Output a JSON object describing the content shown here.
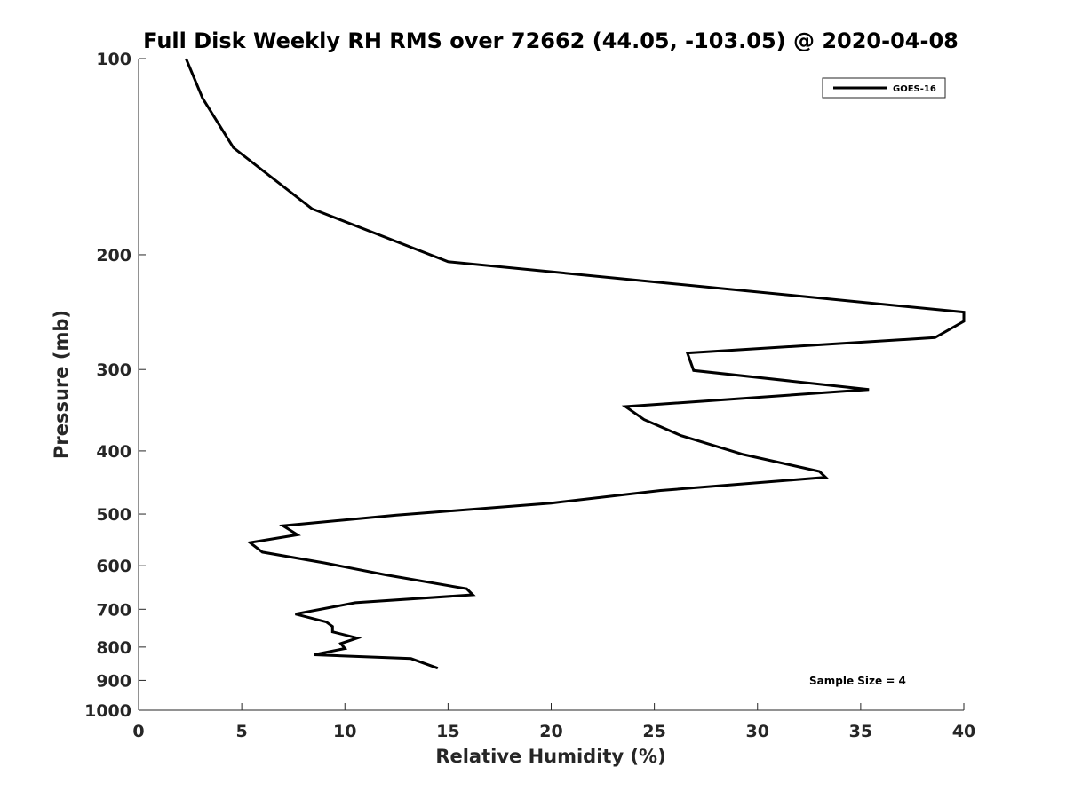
{
  "chart_data": {
    "type": "line",
    "title": "Full Disk Weekly RH RMS over 72662 (44.05, -103.05) @ 2020-04-08",
    "xlabel": "Relative Humidity (%)",
    "ylabel": "Pressure (mb)",
    "xlim": [
      0,
      40
    ],
    "ylim": [
      100,
      1000
    ],
    "yscale": "log",
    "y_reversed": true,
    "grid": false,
    "x_ticks": [
      0,
      5,
      10,
      15,
      20,
      25,
      30,
      35,
      40
    ],
    "y_ticks": [
      100,
      200,
      300,
      400,
      500,
      600,
      700,
      800,
      900,
      1000
    ],
    "legend": {
      "position": "top-right",
      "entries": [
        "GOES-16"
      ]
    },
    "annotation": "Sample Size = 4",
    "series": [
      {
        "name": "GOES-16",
        "color": "#000000",
        "x": [
          2.3,
          3.1,
          4.6,
          8.4,
          15.0,
          40.0,
          40.0,
          38.6,
          26.6,
          26.9,
          35.4,
          23.6,
          24.5,
          26.3,
          29.3,
          33.0,
          33.3,
          25.3,
          20.0,
          12.5,
          7.0,
          7.7,
          5.4,
          6.0,
          9.0,
          12.0,
          15.9,
          16.2,
          10.5,
          7.6,
          9.1,
          9.4,
          9.4,
          10.6,
          9.8,
          10.0,
          8.5,
          13.2,
          14.5
        ],
        "y": [
          100,
          115,
          137,
          170,
          205,
          245,
          253,
          268,
          283,
          301,
          322,
          342,
          358,
          379,
          405,
          430,
          439,
          460,
          481,
          502,
          521,
          538,
          553,
          572,
          594,
          620,
          651,
          665,
          684,
          712,
          732,
          744,
          758,
          775,
          790,
          804,
          822,
          833,
          862
        ]
      }
    ]
  }
}
